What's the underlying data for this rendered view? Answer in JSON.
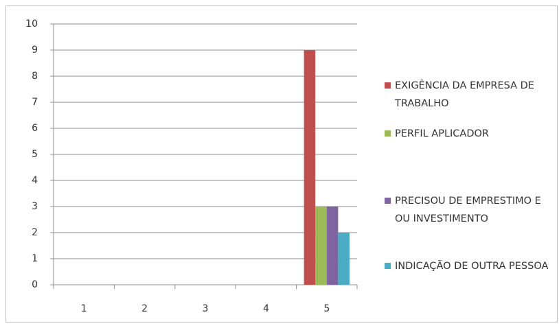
{
  "chart_data": {
    "type": "bar",
    "categories": [
      "1",
      "2",
      "3",
      "4",
      "5"
    ],
    "series": [
      {
        "name": "EXIGÊNCIA DA EMPRESA DE TRABALHO",
        "color": "#c0504d",
        "values": [
          0,
          0,
          0,
          0,
          9
        ]
      },
      {
        "name": "PERFIL APLICADOR",
        "color": "#9bbb59",
        "values": [
          0,
          0,
          0,
          0,
          3
        ]
      },
      {
        "name": "PRECISOU DE EMPRESTIMO E OU INVESTIMENTO",
        "color": "#8064a2",
        "values": [
          0,
          0,
          0,
          0,
          3
        ]
      },
      {
        "name": "INDICAÇÃO DE OUTRA PESSOA",
        "color": "#4bacc6",
        "values": [
          0,
          0,
          0,
          0,
          2
        ]
      }
    ],
    "ylim": [
      0,
      10
    ],
    "yticks": [
      0,
      1,
      2,
      3,
      4,
      5,
      6,
      7,
      8,
      9,
      10
    ],
    "grid": true,
    "legend": "right"
  }
}
